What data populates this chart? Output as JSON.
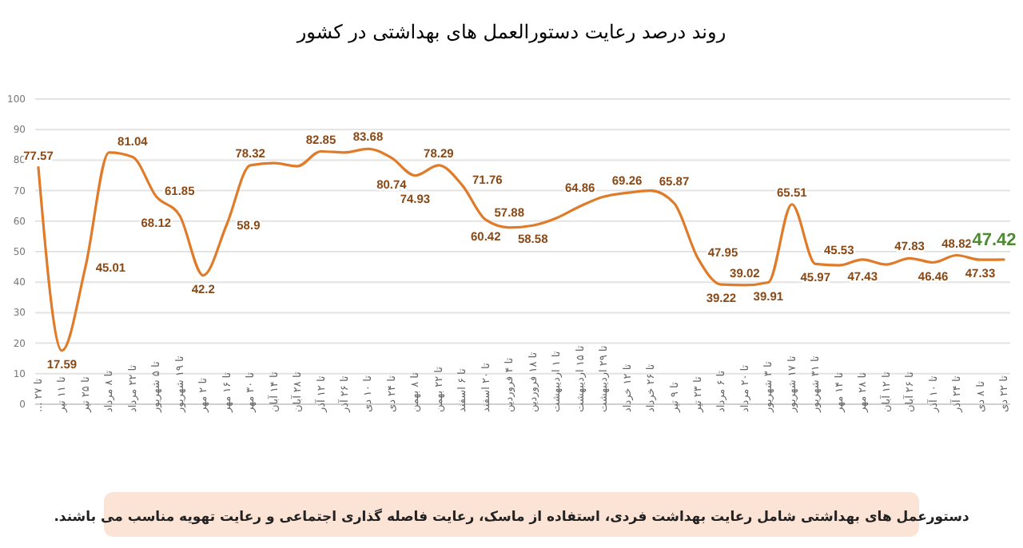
{
  "chart_data": {
    "type": "line",
    "title": "روند درصد رعایت دستورالعمل های بهداشتی در کشور",
    "categories": [
      "تا ۲۷ ...",
      "تا ۱۱ تیر",
      "تا ۲۵ تیر",
      "تا ۸ مرداد",
      "تا ۲۲ مرداد",
      "تا ۵ شهریور",
      "تا ۱۹ شهریور",
      "تا ۲ مهر",
      "تا ۱۶ مهر",
      "تا ۳۰ مهر",
      "تا ۱۴ آبان",
      "تا ۲۸ آبان",
      "تا ۱۲ آذر",
      "تا ۲۶ آذر",
      "تا ۱۰ دی",
      "تا ۲۴ دی",
      "تا ۸ بهمن",
      "تا ۲۲ بهمن",
      "تا ۶ اسفند",
      "تا ۲۰ اسفند",
      "تا ۴ فروردین",
      "تا ۱۸ فروردین",
      "تا ۱ اردیبهشت",
      "تا ۱۵ اردیبهشت",
      "تا ۲۹ اردیبهشت",
      "تا ۱۲ خرداد",
      "تا ۲۶ خرداد",
      "تا ۹ تیر",
      "تا ۲۳ تیر",
      "تا ۶ مرداد",
      "تا ۲۰ مرداد",
      "تا ۳ شهریور",
      "تا ۱۷ شهریور",
      "تا ۳۱ شهریور",
      "تا ۱۴ مهر",
      "تا ۲۸ مهر",
      "تا ۱۲ آبان",
      "تا ۲۶ آبان",
      "تا ۱۰ آذر",
      "تا ۲۴ آذر",
      "تا ۸ دی",
      "تا ۲۲ دی"
    ],
    "series": [
      {
        "color": "#e07b2a",
        "values": [
          77.57,
          17.59,
          45.01,
          82.5,
          81.04,
          68.12,
          61.85,
          42.2,
          58.9,
          78.32,
          79,
          78,
          82.85,
          82.5,
          83.68,
          80.74,
          74.93,
          78.29,
          71.76,
          60.42,
          57.88,
          58.58,
          61,
          64.86,
          68,
          69.26,
          70,
          65.87,
          47.95,
          39.22,
          39.02,
          39.91,
          65.51,
          45.97,
          45.53,
          47.43,
          45.8,
          47.83,
          46.46,
          48.82,
          47.33,
          47.42
        ],
        "value_labels": [
          "77.57",
          "17.59",
          "45.01",
          null,
          "81.04",
          "68.12",
          "61.85",
          "42.2",
          "58.9",
          "78.32",
          null,
          null,
          "82.85",
          null,
          "83.68",
          "80.74",
          "74.93",
          "78.29",
          "71.76",
          "60.42",
          "57.88",
          "58.58",
          null,
          "64.86",
          null,
          "69.26",
          null,
          "65.87",
          "47.95",
          "39.22",
          "39.02",
          "39.91",
          "65.51",
          "45.97",
          "45.53",
          "47.43",
          null,
          "47.83",
          "46.46",
          "48.82",
          "47.33",
          null
        ]
      }
    ],
    "annotations": [
      {
        "text": "47.42",
        "x": "تا ۲۲ دی",
        "y": 47.42
      },
      "دستورعمل های بهداشتی شامل رعایت بهداشت فردی، استفاده از ماسک، رعایت فاصله گذاری اجتماعی و رعایت تهویه مناسب می باشند."
    ],
    "ylim": [
      0,
      100
    ],
    "yticks": [
      0,
      10,
      20,
      30,
      40,
      50,
      60,
      70,
      80,
      90,
      100
    ],
    "grid": "y",
    "marker": "none",
    "line_style": "solid"
  }
}
